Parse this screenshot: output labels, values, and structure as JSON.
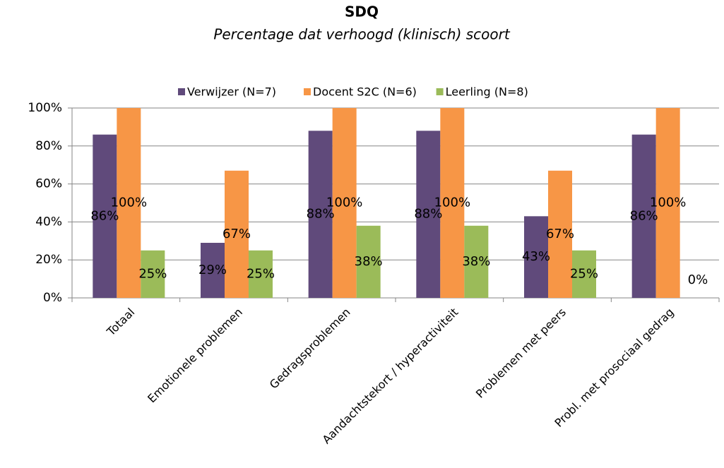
{
  "chart_data": {
    "type": "bar",
    "title": "SDQ",
    "subtitle": "Percentage dat verhoogd (klinisch) scoort",
    "categories": [
      "Totaal",
      "Emotionele problemen",
      "Gedragsproblemen",
      "Aandachtstekort / hyperactiviteit",
      "Problemen met peers",
      "Probl. met prosociaal gedrag"
    ],
    "series": [
      {
        "name": "Verwijzer (N=7)",
        "color": "#604a7b",
        "values": [
          86,
          29,
          88,
          88,
          43,
          86
        ],
        "value_labels": [
          "86%",
          "29%",
          "88%",
          "88%",
          "43%",
          "86%"
        ]
      },
      {
        "name": "Docent S2C (N=6)",
        "color": "#f79646",
        "values": [
          100,
          67,
          100,
          100,
          67,
          100
        ],
        "value_labels": [
          "100%",
          "67%",
          "100%",
          "100%",
          "67%",
          "100%"
        ]
      },
      {
        "name": "Leerling (N=8)",
        "color": "#9bbb59",
        "values": [
          25,
          25,
          38,
          38,
          25,
          0
        ],
        "value_labels": [
          "25%",
          "25%",
          "38%",
          "38%",
          "25%",
          "0%"
        ]
      }
    ],
    "ylim": [
      0,
      100
    ],
    "yticks": [
      {
        "value": 0,
        "label": "0%"
      },
      {
        "value": 20,
        "label": "20%"
      },
      {
        "value": 40,
        "label": "40%"
      },
      {
        "value": 60,
        "label": "60%"
      },
      {
        "value": 80,
        "label": "80%"
      },
      {
        "value": 100,
        "label": "100%"
      }
    ],
    "grid": true,
    "legend": "top"
  }
}
